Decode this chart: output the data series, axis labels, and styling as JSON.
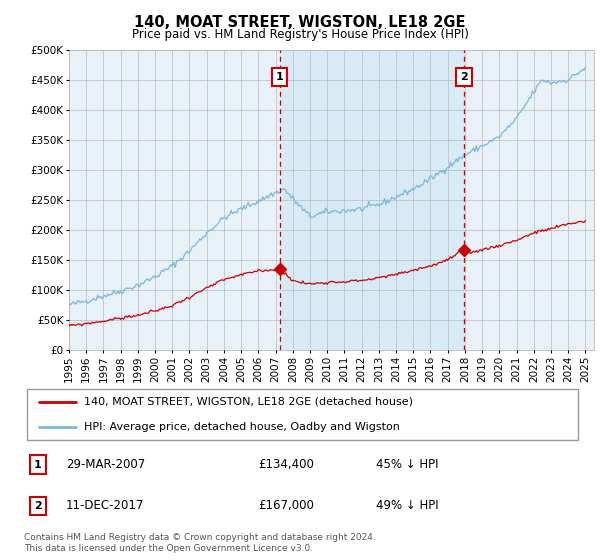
{
  "title": "140, MOAT STREET, WIGSTON, LE18 2GE",
  "subtitle": "Price paid vs. HM Land Registry's House Price Index (HPI)",
  "legend_line1": "140, MOAT STREET, WIGSTON, LE18 2GE (detached house)",
  "legend_line2": "HPI: Average price, detached house, Oadby and Wigston",
  "sale1_date": "29-MAR-2007",
  "sale1_price": "£134,400",
  "sale1_hpi": "45% ↓ HPI",
  "sale2_date": "11-DEC-2017",
  "sale2_price": "£167,000",
  "sale2_hpi": "49% ↓ HPI",
  "footer": "Contains HM Land Registry data © Crown copyright and database right 2024.\nThis data is licensed under the Open Government Licence v3.0.",
  "hpi_color": "#7ab8d9",
  "price_color": "#cc0000",
  "shade_color": "#d8eaf5",
  "background_color": "#e8f0f8",
  "sale1_x": 2007.23,
  "sale2_x": 2017.94,
  "ylim_max": 500000,
  "hpi_anchors_t": [
    1995.0,
    1996.0,
    1997.0,
    1998.0,
    1999.0,
    2000.0,
    2001.0,
    2002.0,
    2003.0,
    2004.0,
    2005.0,
    2006.0,
    2007.0,
    2007.5,
    2008.0,
    2009.0,
    2010.0,
    2011.0,
    2012.0,
    2013.0,
    2014.0,
    2015.0,
    2016.0,
    2017.0,
    2017.5,
    2018.0,
    2019.0,
    2020.0,
    2021.0,
    2022.0,
    2022.5,
    2023.0,
    2024.0,
    2024.5,
    2025.0
  ],
  "hpi_anchors_v": [
    75000,
    82000,
    90000,
    98000,
    108000,
    122000,
    140000,
    165000,
    195000,
    220000,
    235000,
    248000,
    262000,
    268000,
    252000,
    222000,
    230000,
    232000,
    235000,
    242000,
    255000,
    268000,
    285000,
    305000,
    315000,
    325000,
    340000,
    355000,
    385000,
    430000,
    450000,
    445000,
    450000,
    460000,
    470000
  ],
  "price_anchors_t": [
    1995.0,
    1996.0,
    1997.0,
    1998.0,
    1999.0,
    2000.0,
    2001.0,
    2002.0,
    2003.0,
    2004.0,
    2005.0,
    2006.0,
    2007.0,
    2007.23,
    2007.5,
    2008.0,
    2009.0,
    2010.0,
    2011.0,
    2012.0,
    2013.0,
    2014.0,
    2015.0,
    2016.0,
    2017.0,
    2017.94,
    2018.0,
    2019.0,
    2020.0,
    2021.0,
    2022.0,
    2023.0,
    2024.0,
    2025.0
  ],
  "price_anchors_v": [
    40000,
    44000,
    48000,
    53000,
    58000,
    65000,
    74000,
    88000,
    103000,
    117000,
    125000,
    132000,
    134000,
    134400,
    130000,
    115000,
    110000,
    113000,
    114000,
    116000,
    120000,
    126000,
    133000,
    140000,
    150000,
    167000,
    160000,
    167000,
    174000,
    183000,
    195000,
    202000,
    210000,
    215000
  ]
}
